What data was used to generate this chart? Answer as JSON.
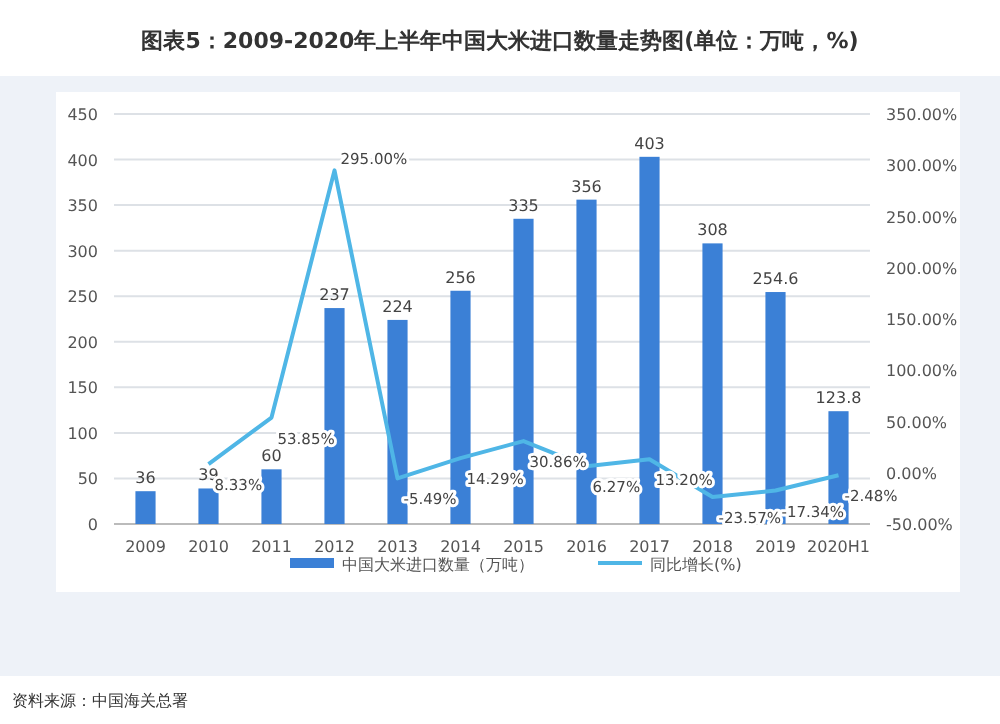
{
  "chart_data": {
    "type": "bar",
    "title": "图表5：2009-2020年上半年中国大米进口数量走势图(单位：万吨，%)",
    "categories": [
      "2009",
      "2010",
      "2011",
      "2012",
      "2013",
      "2014",
      "2015",
      "2016",
      "2017",
      "2018",
      "2019",
      "2020H1"
    ],
    "series": [
      {
        "name": "中国大米进口数量（万吨）",
        "color": "#3b80d6",
        "values": [
          36,
          39,
          60,
          237,
          224,
          256,
          335,
          356,
          403,
          308,
          254.6,
          123.8
        ],
        "value_labels": [
          "36",
          "39",
          "60",
          "237",
          "224",
          "256",
          "335",
          "356",
          "403",
          "308",
          "254.6",
          "123.8"
        ]
      },
      {
        "name": "同比增长(%)",
        "type": "line",
        "axis": "y2",
        "color": "#4fb6e6",
        "values": [
          null,
          8.33,
          53.85,
          295.0,
          -5.49,
          14.29,
          30.86,
          6.27,
          13.2,
          -23.57,
          -17.34,
          -2.48
        ],
        "value_labels": [
          null,
          "8.33%",
          "53.85%",
          "295.00%",
          "-5.49%",
          "14.29%",
          "30.86%",
          "6.27%",
          "13.20%",
          "-23.57%",
          "-17.34%",
          "-2.48%"
        ]
      }
    ],
    "ylim": [
      0,
      450
    ],
    "yticks": [
      0,
      50,
      100,
      150,
      200,
      250,
      300,
      350,
      400,
      450
    ],
    "y2lim": [
      -50,
      350
    ],
    "y2ticks": [
      {
        "value": -50,
        "label": "-50.00%"
      },
      {
        "value": 0,
        "label": "0.00%"
      },
      {
        "value": 50,
        "label": "50.00%"
      },
      {
        "value": 100,
        "label": "100.00%"
      },
      {
        "value": 150,
        "label": "150.00%"
      },
      {
        "value": 200,
        "label": "200.00%"
      },
      {
        "value": 250,
        "label": "250.00%"
      },
      {
        "value": 300,
        "label": "300.00%"
      },
      {
        "value": 350,
        "label": "350.00%"
      }
    ],
    "grid": "y",
    "legend": "bottom",
    "annotations": [
      "资料来源：中国海关总署"
    ]
  }
}
